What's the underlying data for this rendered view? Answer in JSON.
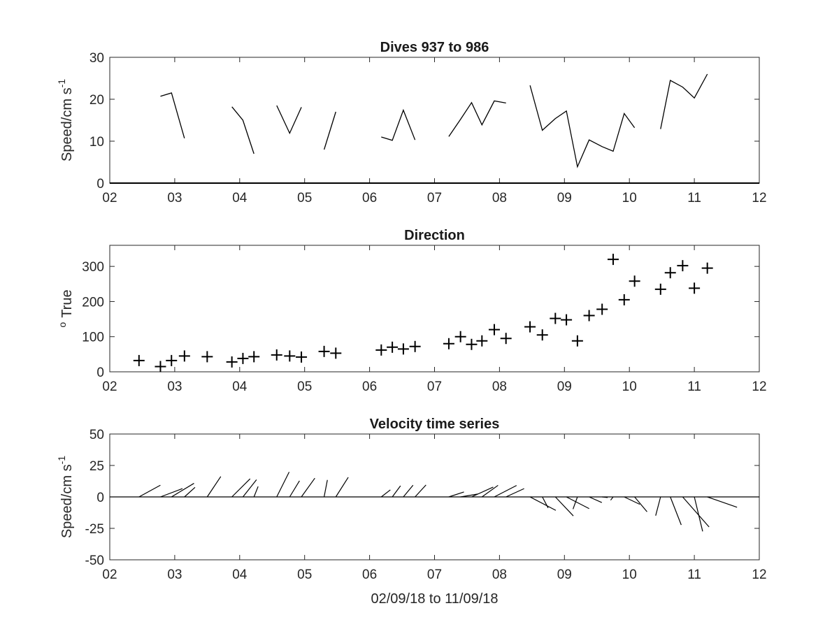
{
  "chart_data": [
    {
      "type": "line",
      "title": "Dives 937 to 986",
      "xlabel": "",
      "ylabel": "Speed/cm s",
      "ylabel_superscript": "-1",
      "xlim": [
        2,
        12
      ],
      "ylim": [
        0,
        30
      ],
      "xticks": [
        "02",
        "03",
        "04",
        "05",
        "06",
        "07",
        "08",
        "09",
        "10",
        "11",
        "12"
      ],
      "yticks": [
        "0",
        "10",
        "20",
        "30"
      ],
      "segments": [
        [
          [
            2.78,
            20.7
          ],
          [
            2.95,
            21.5
          ],
          [
            3.15,
            10.7
          ]
        ],
        [
          [
            3.88,
            18.2
          ],
          [
            4.05,
            15.0
          ],
          [
            4.22,
            7.0
          ]
        ],
        [
          [
            4.57,
            18.5
          ],
          [
            4.77,
            11.9
          ],
          [
            4.95,
            18.1
          ]
        ],
        [
          [
            5.3,
            8.0
          ],
          [
            5.48,
            17.0
          ]
        ],
        [
          [
            6.18,
            11.0
          ],
          [
            6.35,
            10.2
          ],
          [
            6.52,
            17.4
          ],
          [
            6.7,
            10.3
          ]
        ],
        [
          [
            7.22,
            11.1
          ],
          [
            7.4,
            15.2
          ],
          [
            7.57,
            19.2
          ],
          [
            7.73,
            13.9
          ],
          [
            7.92,
            19.6
          ],
          [
            8.1,
            19.1
          ]
        ],
        [
          [
            8.47,
            23.3
          ],
          [
            8.66,
            12.6
          ],
          [
            8.86,
            15.4
          ],
          [
            9.03,
            17.2
          ],
          [
            9.2,
            3.9
          ],
          [
            9.38,
            10.3
          ],
          [
            9.58,
            8.7
          ],
          [
            9.75,
            7.6
          ],
          [
            9.92,
            16.6
          ],
          [
            10.08,
            13.2
          ]
        ],
        [
          [
            10.48,
            12.9
          ],
          [
            10.63,
            24.5
          ],
          [
            10.82,
            22.9
          ],
          [
            11.0,
            20.3
          ],
          [
            11.2,
            26.0
          ]
        ]
      ],
      "grid": false
    },
    {
      "type": "scatter",
      "title": "Direction",
      "xlabel": "",
      "ylabel": "True",
      "ylabel_prefix": "o",
      "marker": "+",
      "xlim": [
        2,
        12
      ],
      "ylim": [
        0,
        360
      ],
      "xticks": [
        "02",
        "03",
        "04",
        "05",
        "06",
        "07",
        "08",
        "09",
        "10",
        "11",
        "12"
      ],
      "yticks": [
        "0",
        "100",
        "200",
        "300"
      ],
      "x": [
        2.45,
        2.78,
        2.95,
        3.15,
        3.5,
        3.88,
        4.05,
        4.22,
        4.57,
        4.77,
        4.95,
        5.3,
        5.48,
        6.18,
        6.35,
        6.52,
        6.7,
        7.22,
        7.4,
        7.57,
        7.73,
        7.92,
        8.1,
        8.47,
        8.66,
        8.86,
        9.03,
        9.2,
        9.38,
        9.58,
        9.75,
        9.92,
        10.08,
        10.48,
        10.63,
        10.82,
        11.0,
        11.2
      ],
      "y": [
        32,
        15,
        32,
        45,
        43,
        28,
        38,
        43,
        48,
        45,
        42,
        58,
        53,
        62,
        70,
        65,
        72,
        80,
        100,
        78,
        88,
        120,
        95,
        128,
        105,
        152,
        148,
        88,
        160,
        178,
        320,
        205,
        258,
        235,
        282,
        302,
        238,
        295
      ],
      "grid": false
    },
    {
      "type": "quiver",
      "title": "Velocity time series",
      "xlabel": "02/09/18 to 11/09/18",
      "ylabel": "Speed/cm s",
      "ylabel_superscript": "-1",
      "xlim": [
        2,
        12
      ],
      "ylim": [
        -50,
        50
      ],
      "xticks": [
        "02",
        "03",
        "04",
        "05",
        "06",
        "07",
        "08",
        "09",
        "10",
        "11",
        "12"
      ],
      "yticks": [
        "-50",
        "-25",
        "0",
        "25",
        "50"
      ],
      "baseline": 0,
      "t": [
        2.45,
        2.78,
        2.95,
        3.15,
        3.5,
        3.88,
        4.05,
        4.22,
        4.57,
        4.77,
        4.95,
        5.3,
        5.48,
        6.18,
        6.35,
        6.52,
        6.7,
        7.22,
        7.4,
        7.57,
        7.73,
        7.92,
        8.1,
        8.47,
        8.66,
        8.86,
        9.03,
        9.2,
        9.38,
        9.58,
        9.75,
        9.92,
        10.08,
        10.48,
        10.63,
        10.82,
        11.0,
        11.2
      ],
      "u": [
        9.3,
        6.6,
        10.8,
        7.6,
        16.2,
        14.4,
        13.7,
        8.3,
        19.8,
        12.8,
        14.9,
        13.5,
        15.6,
        5.6,
        8.8,
        9.3,
        9.5,
        3.9,
        2.3,
        7.8,
        9.2,
        9.1,
        6.6,
        -10.7,
        -8.8,
        -15.1,
        -9.3,
        -9.7,
        -4.5,
        -0.5,
        -2.6,
        -5.9,
        -11.8,
        -14.9,
        -22.3,
        -23.9,
        -27.4,
        -8.2
      ],
      "v": [
        17.0,
        17.5,
        17.9,
        8.4,
        10.8,
        14.5,
        10.8,
        3.3,
        9.9,
        7.8,
        10.7,
        2.6,
        9.9,
        7.2,
        6.5,
        7.7,
        8.7,
        12.0,
        13.8,
        17.2,
        12.8,
        17.7,
        14.4,
        20.5,
        4.6,
        14.3,
        18.1,
        -3.5,
        10.1,
        4.4,
        -2.0,
        12.4,
        9.9,
        -3.9,
        8.7,
        21.0,
        6.6,
        23.6
      ],
      "grid": false
    }
  ]
}
